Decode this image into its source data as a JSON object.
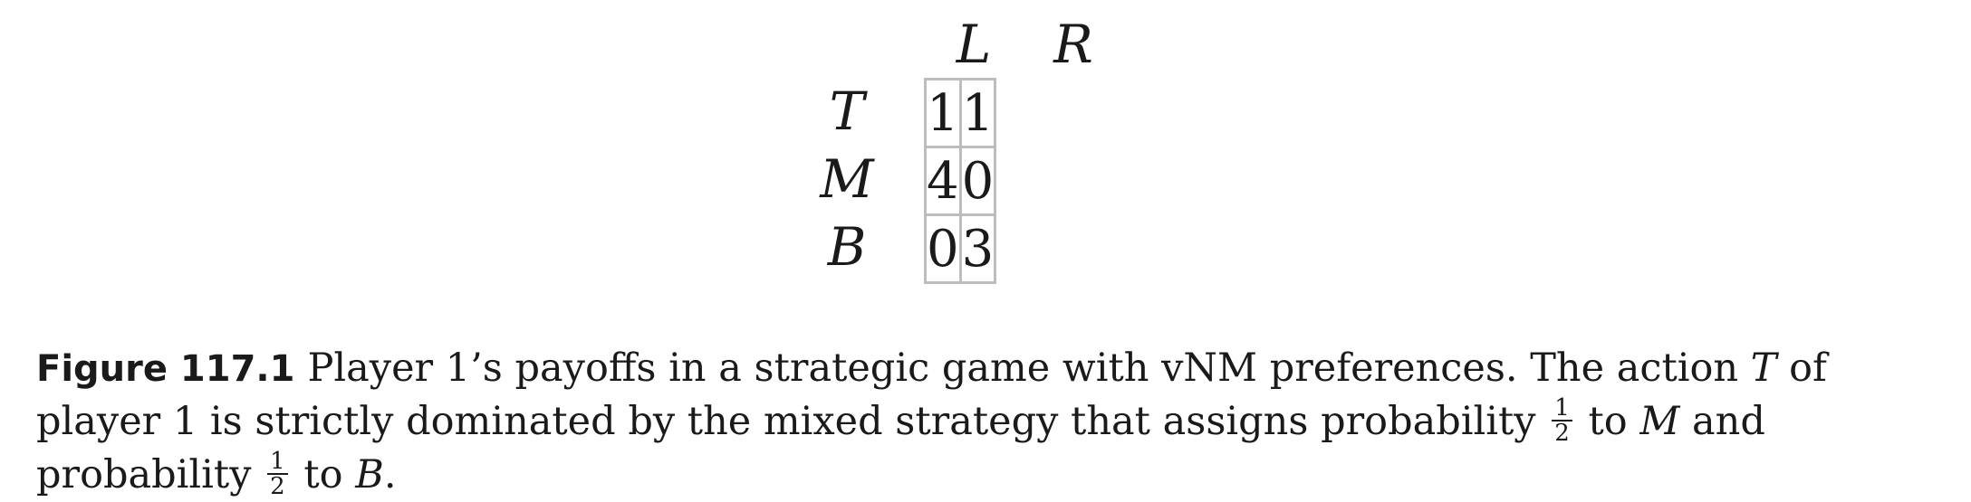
{
  "matrix": {
    "columns": [
      "L",
      "R"
    ],
    "rows": [
      {
        "label": "T",
        "values": [
          "1",
          "1"
        ]
      },
      {
        "label": "M",
        "values": [
          "4",
          "0"
        ]
      },
      {
        "label": "B",
        "values": [
          "0",
          "3"
        ]
      }
    ]
  },
  "caption": {
    "figure_label": "Figure 117.1",
    "part1": "Player 1’s payoffs in a strategic game with vNM preferences. The action ",
    "var_t": "T",
    "part2": " of player 1 is strictly dominated by the mixed strategy that assigns probability ",
    "frac1_num": "1",
    "frac1_den": "2",
    "part3": " to ",
    "var_m": "M",
    "part4": " and probability ",
    "frac2_num": "1",
    "frac2_den": "2",
    "part5": " to ",
    "var_b": "B",
    "part6": "."
  }
}
